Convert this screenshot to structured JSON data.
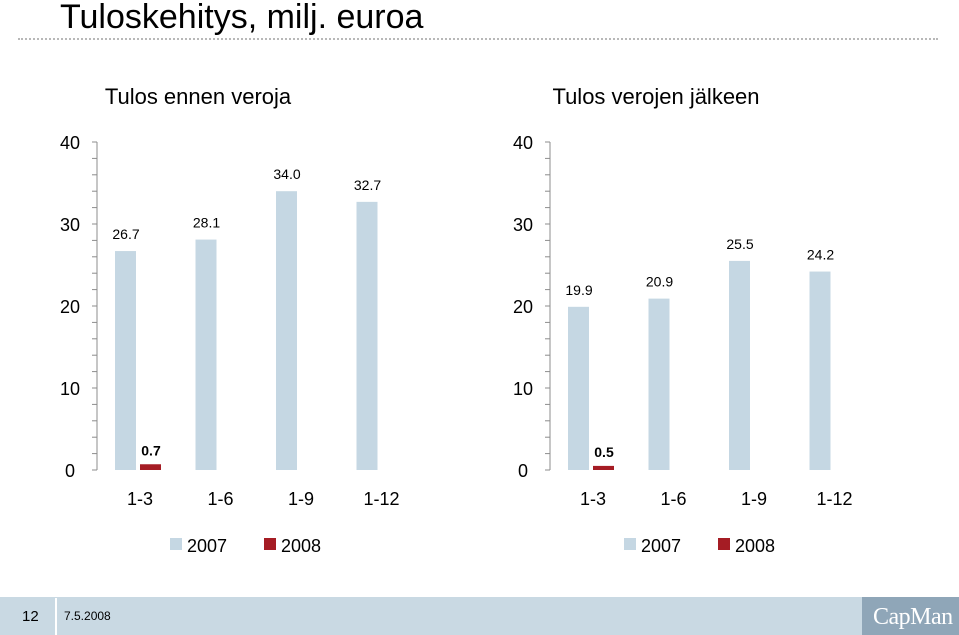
{
  "page": {
    "title": "Tuloskehitys, milj. euroa"
  },
  "footer": {
    "page_number": "12",
    "date": "7.5.2008",
    "logo_text": "CapMan"
  },
  "colors": {
    "series_2007": "#c5d7e3",
    "series_2008": "#a51c24",
    "footer_bar": "#c9d9e3",
    "logo_bg": "#8fa6b8"
  },
  "chart_data": [
    {
      "type": "bar",
      "title": "Tulos ennen veroja",
      "categories": [
        "1-3",
        "1-6",
        "1-9",
        "1-12"
      ],
      "series": [
        {
          "name": "2007",
          "values": [
            26.7,
            28.1,
            34.0,
            32.7
          ],
          "labels": [
            "26.7",
            "28.1",
            "34.0",
            "32.7"
          ]
        },
        {
          "name": "2008",
          "values": [
            0.7,
            null,
            null,
            null
          ],
          "labels": [
            "0.7",
            "",
            "",
            ""
          ]
        }
      ],
      "ylim": [
        0,
        40
      ],
      "yticks": [
        "0",
        "10",
        "20",
        "30",
        "40"
      ],
      "legend_position": "bottom",
      "grid": false
    },
    {
      "type": "bar",
      "title": "Tulos verojen jälkeen",
      "categories": [
        "1-3",
        "1-6",
        "1-9",
        "1-12"
      ],
      "series": [
        {
          "name": "2007",
          "values": [
            19.9,
            20.9,
            25.5,
            24.2
          ],
          "labels": [
            "19.9",
            "20.9",
            "25.5",
            "24.2"
          ]
        },
        {
          "name": "2008",
          "values": [
            0.5,
            null,
            null,
            null
          ],
          "labels": [
            "0.5",
            "",
            "",
            ""
          ]
        }
      ],
      "ylim": [
        0,
        40
      ],
      "yticks": [
        "0",
        "10",
        "20",
        "30",
        "40"
      ],
      "legend_position": "bottom",
      "grid": false
    }
  ]
}
